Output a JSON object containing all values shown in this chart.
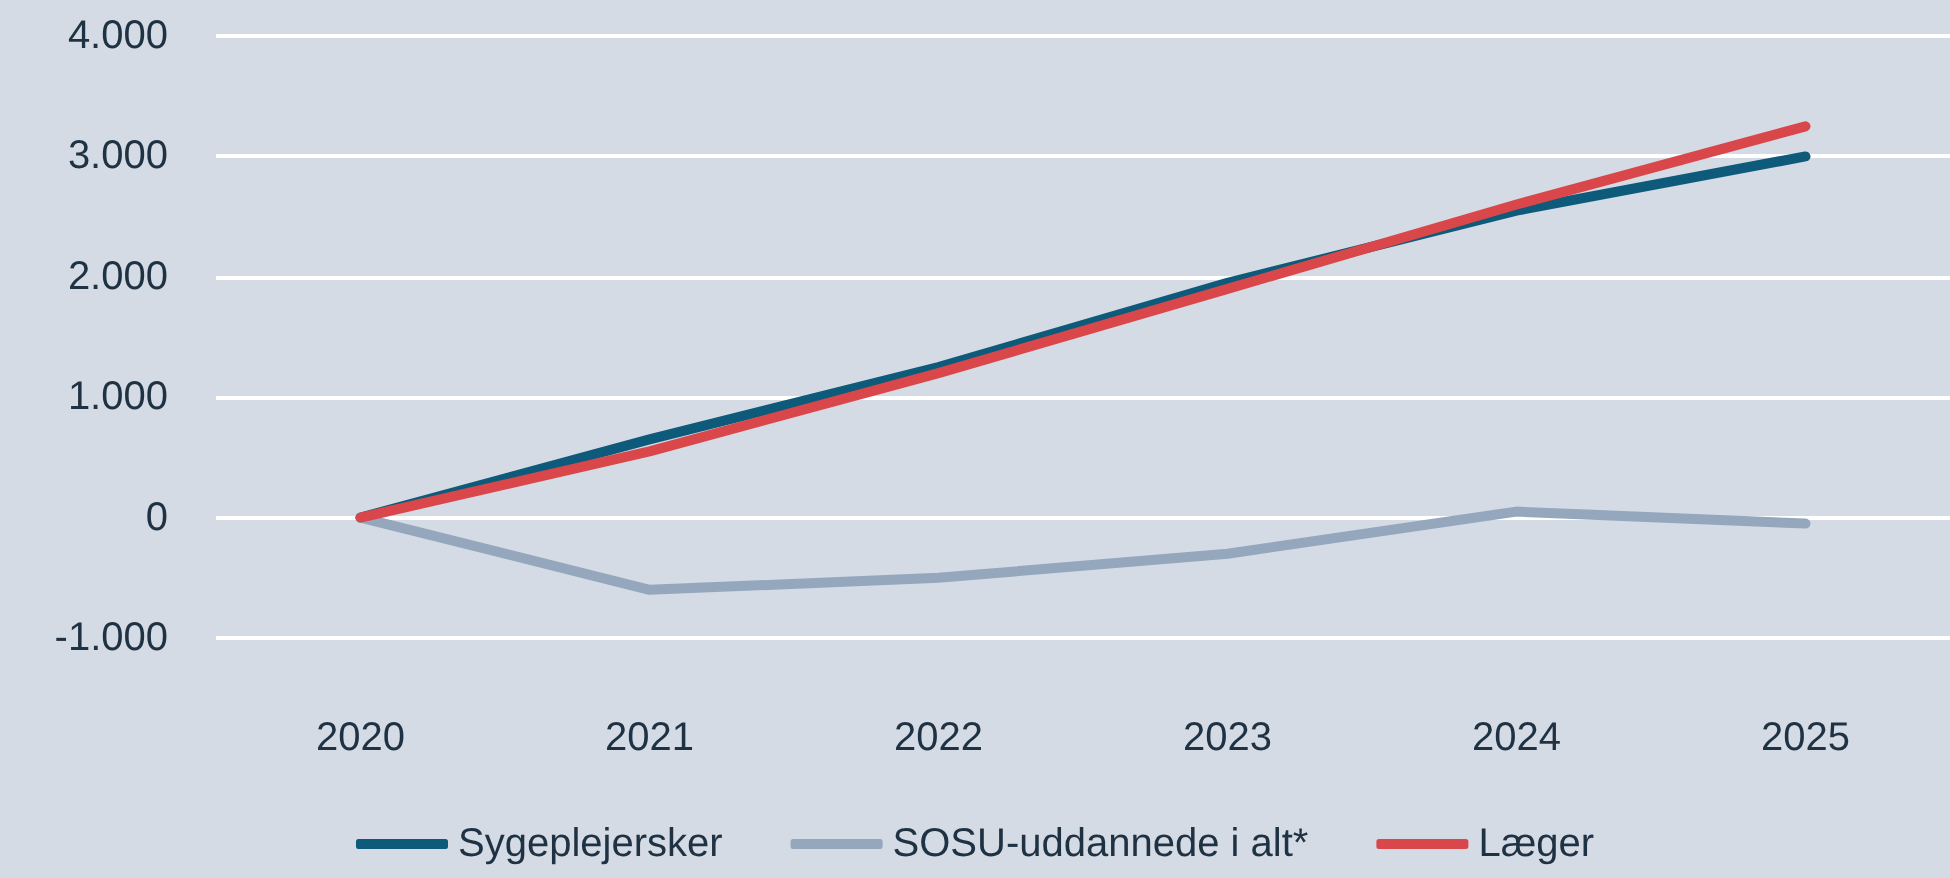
{
  "chart_data": {
    "type": "line",
    "categories": [
      "2020",
      "2021",
      "2022",
      "2023",
      "2024",
      "2025"
    ],
    "series": [
      {
        "name": "Sygeplejersker",
        "color": "#0e5a7a",
        "values": [
          0,
          650,
          1250,
          1950,
          2550,
          3000
        ]
      },
      {
        "name": "SOSU-uddannede i alt*",
        "color": "#95a7bd",
        "values": [
          0,
          -600,
          -500,
          -300,
          50,
          -50
        ]
      },
      {
        "name": "Læger",
        "color": "#d9474a",
        "values": [
          0,
          550,
          1200,
          1900,
          2600,
          3250
        ]
      }
    ],
    "ylim": [
      -1000,
      4000
    ],
    "yticks": [
      {
        "value": -1000,
        "label": "-1.000"
      },
      0,
      {
        "value": 1000,
        "label": "1.000"
      },
      {
        "value": 2000,
        "label": "2.000"
      },
      {
        "value": 3000,
        "label": "3.000"
      },
      {
        "value": 4000,
        "label": "4.000"
      }
    ],
    "grid": "y",
    "legend": "bottom",
    "marker": "none",
    "line_style": "solid"
  }
}
